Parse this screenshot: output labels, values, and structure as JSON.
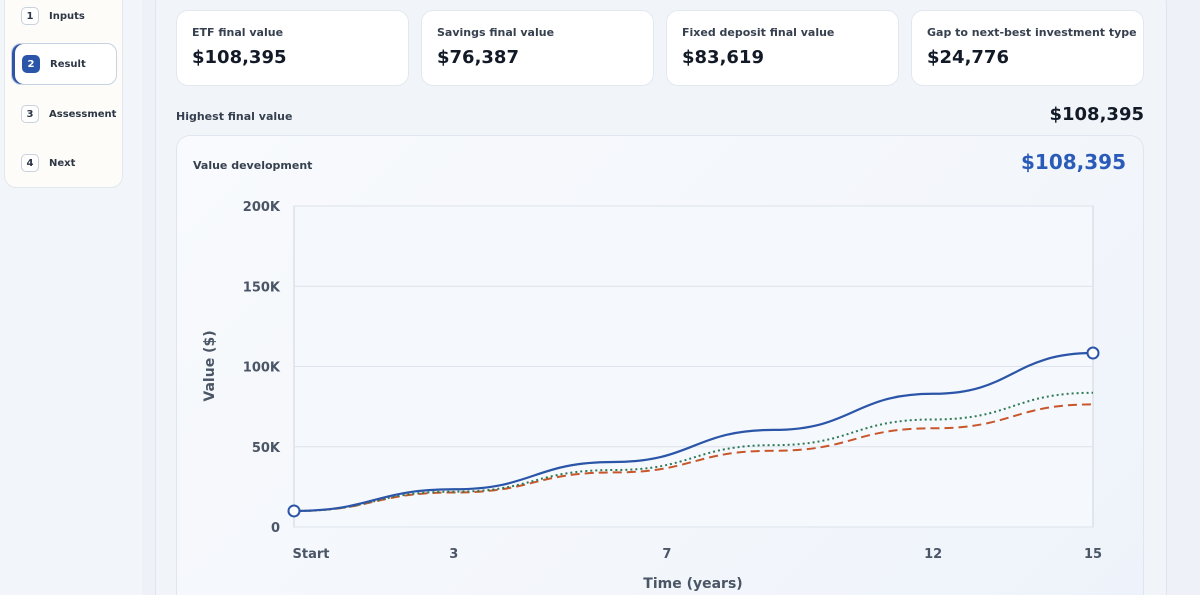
{
  "steps": [
    {
      "num": "1",
      "label": "Inputs",
      "active": false
    },
    {
      "num": "2",
      "label": "Result",
      "active": true
    },
    {
      "num": "3",
      "label": "Assessment",
      "active": false
    },
    {
      "num": "4",
      "label": "Next",
      "active": false
    }
  ],
  "stats": [
    {
      "label": "ETF final value",
      "value": "$108,395"
    },
    {
      "label": "Savings final value",
      "value": "$76,387"
    },
    {
      "label": "Fixed deposit final value",
      "value": "$83,619"
    },
    {
      "label": "Gap to next-best investment type",
      "value": "$24,776"
    }
  ],
  "highest": {
    "label": "Highest final value",
    "value": "$108,395"
  },
  "chart": {
    "title": "Value development",
    "headline": "$108,395"
  },
  "chart_data": {
    "type": "line",
    "xlabel": "Time (years)",
    "ylabel": "Value ($)",
    "x_ticks": [
      {
        "label": "Start",
        "x": 0
      },
      {
        "label": "3",
        "x": 3
      },
      {
        "label": "7",
        "x": 7
      },
      {
        "label": "12",
        "x": 12
      },
      {
        "label": "15",
        "x": 15
      }
    ],
    "y_ticks": [
      {
        "label": "0",
        "y": 0
      },
      {
        "label": "50K",
        "y": 50000
      },
      {
        "label": "100K",
        "y": 100000
      },
      {
        "label": "150K",
        "y": 150000
      },
      {
        "label": "200K",
        "y": 200000
      }
    ],
    "xlim": [
      0,
      15
    ],
    "ylim": [
      0,
      200000
    ],
    "grid": true,
    "series": [
      {
        "color": "#2b55a8",
        "style": "solid",
        "endpoint_markers": true,
        "x": [
          0,
          3,
          6,
          9,
          12,
          15
        ],
        "y": [
          10000,
          23500,
          40500,
          60500,
          83000,
          108395
        ]
      },
      {
        "color": "#2f7a55",
        "style": "dotted",
        "x": [
          0,
          3,
          6,
          9,
          12,
          15
        ],
        "y": [
          10000,
          22000,
          35500,
          51000,
          67000,
          83619
        ]
      },
      {
        "color": "#c8562a",
        "style": "dashed",
        "x": [
          0,
          3,
          6,
          9,
          12,
          15
        ],
        "y": [
          10000,
          21500,
          34000,
          47500,
          61500,
          76387
        ]
      }
    ]
  }
}
